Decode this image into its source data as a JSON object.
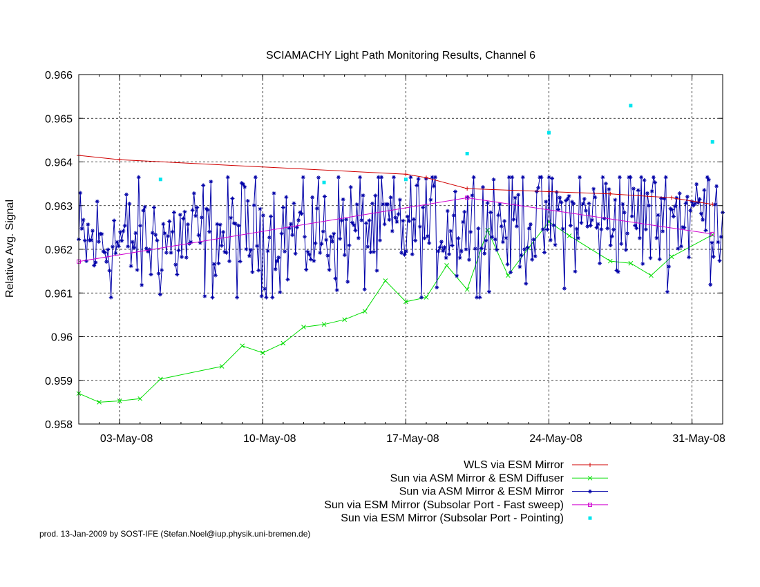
{
  "chart_data": {
    "type": "line",
    "title": "SCIAMACHY Light Path Monitoring Results, Channel 6",
    "ylabel": "Relative Avg. Signal",
    "xlabel": "",
    "xlim": [
      "2008-05-01",
      "2008-06-01"
    ],
    "ylim": [
      0.958,
      0.966
    ],
    "grid": true,
    "legend_position": "below-right",
    "x_tick_labels": [
      "03-May-08",
      "10-May-08",
      "17-May-08",
      "24-May-08",
      "31-May-08"
    ],
    "x_tick_dates": [
      "2008-05-03",
      "2008-05-10",
      "2008-05-17",
      "2008-05-24",
      "2008-05-31"
    ],
    "y_ticks": [
      0.958,
      0.959,
      0.96,
      0.961,
      0.962,
      0.963,
      0.964,
      0.965,
      0.966
    ],
    "y_tick_labels": [
      "0.958",
      "0.959",
      "0.96",
      "0.961",
      "0.962",
      "0.963",
      "0.964",
      "0.965",
      "0.966"
    ],
    "footer": "prod. 13-Jan-2009 by SOST-IFE (Stefan.Noel@iup.physik.uni-bremen.de)",
    "series": [
      {
        "name": "WLS via ESM Mirror",
        "color": "#d00000",
        "marker": "plus",
        "line": true,
        "x": [
          "2008-05-01",
          "2008-05-03",
          "2008-05-17",
          "2008-05-18",
          "2008-05-20",
          "2008-05-24",
          "2008-05-27",
          "2008-05-30",
          "2008-06-01"
        ],
        "y": [
          0.96415,
          0.96405,
          0.96372,
          0.96364,
          0.96339,
          0.96332,
          0.96327,
          0.96318,
          0.96303
        ]
      },
      {
        "name": "Sun via ASM Mirror & ESM Diffuser",
        "color": "#00dd00",
        "marker": "cross",
        "line": true,
        "x": [
          "2008-05-01",
          "2008-05-02",
          "2008-05-03",
          "2008-05-04",
          "2008-05-05",
          "2008-05-08",
          "2008-05-09",
          "2008-05-10",
          "2008-05-11",
          "2008-05-12",
          "2008-05-13",
          "2008-05-14",
          "2008-05-15",
          "2008-05-16",
          "2008-05-17",
          "2008-05-18",
          "2008-05-19",
          "2008-05-20",
          "2008-05-21",
          "2008-05-22",
          "2008-05-23",
          "2008-05-24",
          "2008-05-25",
          "2008-05-27",
          "2008-05-28",
          "2008-05-29",
          "2008-05-30",
          "2008-06-01"
        ],
        "y": [
          0.9587,
          0.9585,
          0.95853,
          0.95858,
          0.95903,
          0.95932,
          0.95979,
          0.95963,
          0.95985,
          0.96022,
          0.96028,
          0.96039,
          0.96058,
          0.96128,
          0.9608,
          0.9609,
          0.96163,
          0.96108,
          0.96244,
          0.9614,
          0.96203,
          0.96263,
          0.96231,
          0.96173,
          0.96168,
          0.9614,
          0.96183,
          0.96233
        ]
      },
      {
        "name": "Sun via ASM Mirror & ESM Mirror",
        "color": "#0000a8",
        "marker": "star",
        "line": true,
        "n_points": 420,
        "x_start": "2008-05-01",
        "x_end": "2008-06-01",
        "y_range": [
          0.9609,
          0.96365
        ],
        "trend": [
          0.9621,
          0.9629
        ]
      },
      {
        "name": "Sun via ESM Mirror (Subsolar Port - Fast sweep)",
        "color": "#d000d0",
        "marker": "square",
        "line": true,
        "x": [
          "2008-05-01",
          "2008-05-20",
          "2008-06-01"
        ],
        "y": [
          0.96172,
          0.96318,
          0.96235
        ]
      },
      {
        "name": "Sun via ESM Mirror (Subsolar Port - Pointing)",
        "color": "#00e5ee",
        "marker": "dot",
        "line": false,
        "x": [
          "2008-05-05",
          "2008-05-13",
          "2008-05-17",
          "2008-05-20",
          "2008-05-24",
          "2008-05-28",
          "2008-06-01"
        ],
        "y": [
          0.9636,
          0.96353,
          0.9636,
          0.96419,
          0.96467,
          0.96529,
          0.96446
        ]
      }
    ]
  }
}
